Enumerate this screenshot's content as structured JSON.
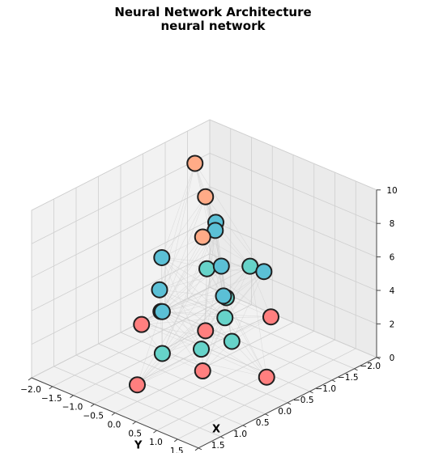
{
  "chart_data": {
    "type": "scatter",
    "projection": "3d",
    "title": "Neural Network Architecture",
    "subtitle": "neural network",
    "xlabel": "X",
    "ylabel": "Y",
    "zlabel": "",
    "xlim": [
      -2.0,
      2.0
    ],
    "ylim": [
      -2.0,
      2.0
    ],
    "zlim": [
      0,
      10
    ],
    "xticks": [
      "2.0",
      "1.5",
      "1.0",
      "0.5",
      "0.0",
      "−0.5",
      "−1.0",
      "−1.5",
      "−2.0"
    ],
    "yticks": [
      "2.0",
      "1.5",
      "1.0",
      "0.5",
      "0.0",
      "−0.5",
      "−1.0",
      "−1.5",
      "−2.0"
    ],
    "zticks": [
      "0",
      "2",
      "4",
      "6",
      "8",
      "10"
    ],
    "grid": true,
    "layers": [
      {
        "color": "#ff7f7f",
        "z": 1.0,
        "points": [
          [
            1.5,
            0.0
          ],
          [
            0.0,
            1.5
          ],
          [
            -1.5,
            0.0
          ],
          [
            0.0,
            -1.5
          ],
          [
            0.5,
            0.5
          ],
          [
            -0.5,
            -0.5
          ]
        ]
      },
      {
        "color": "#66d3c9",
        "z": 3.5,
        "points": [
          [
            1.5,
            0.6
          ],
          [
            1.0,
            1.0
          ],
          [
            0.0,
            0.5
          ],
          [
            -0.5,
            0.0
          ],
          [
            -1.0,
            -1.0
          ],
          [
            0.5,
            -0.5
          ],
          [
            -1.5,
            -0.5
          ],
          [
            0.5,
            1.2
          ]
        ]
      },
      {
        "color": "#5bc0d6",
        "z": 6.0,
        "points": [
          [
            1.5,
            0.6
          ],
          [
            0.5,
            1.0
          ],
          [
            -0.2,
            0.2
          ],
          [
            -1.0,
            -0.8
          ],
          [
            0.2,
            -0.8
          ],
          [
            -1.2,
            -1.0
          ],
          [
            1.0,
            0.0
          ],
          [
            -0.5,
            0.9
          ]
        ]
      },
      {
        "color": "#ffab87",
        "z": 9.0,
        "points": [
          [
            0.5,
            0.5
          ],
          [
            -0.5,
            -0.5
          ],
          [
            -1.2,
            -1.5
          ]
        ]
      }
    ],
    "edge_color": "#cccccc"
  }
}
